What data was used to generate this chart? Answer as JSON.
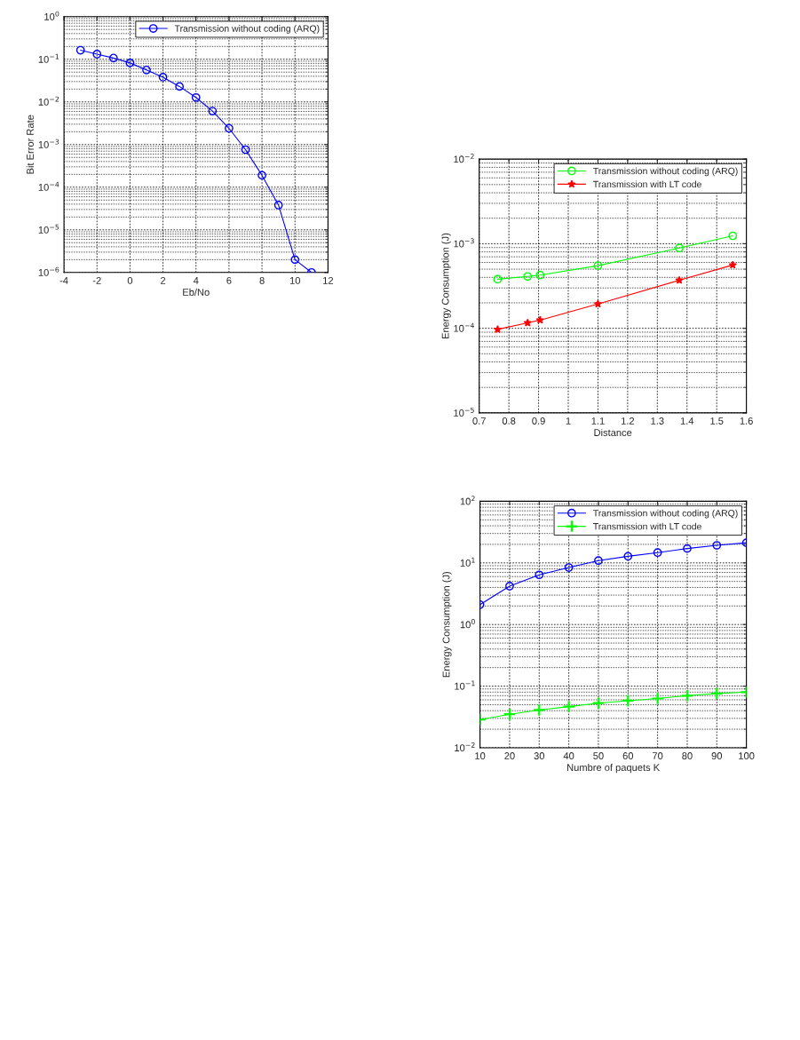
{
  "chart_data": [
    {
      "type": "line",
      "xlabel": "Eb/No",
      "ylabel": "Bit Error Rate",
      "log": "y",
      "grid": true,
      "legend": "top right",
      "marker": "circle",
      "xlim": [
        -4,
        12
      ],
      "xticks": [
        -4,
        -2,
        0,
        2,
        4,
        6,
        8,
        10,
        12
      ],
      "ylim": [
        1e-06,
        1
      ],
      "yticks": [
        {
          "value": 1e-06,
          "label": "10$^{−6}$"
        },
        {
          "value": 1e-05,
          "label": "10$^{−5}$"
        },
        {
          "value": 0.0001,
          "label": "10$^{−4}$"
        },
        {
          "value": 0.001,
          "label": "10$^{−3}$"
        },
        {
          "value": 0.01,
          "label": "10$^{−2}$"
        },
        {
          "value": 0.1,
          "label": "10$^{−1}$"
        },
        {
          "value": 1,
          "label": "10$^{0}$"
        }
      ],
      "x": [
        -3,
        -2,
        -1,
        0,
        1,
        2,
        3,
        4,
        5,
        6,
        7,
        8,
        9,
        10,
        11
      ],
      "series": [
        {
          "name": "Transmission without coding (ARQ)",
          "color": "#0000ff",
          "values": [
            0.163,
            0.132,
            0.107,
            0.082,
            0.056,
            0.038,
            0.023,
            0.0127,
            0.0061,
            0.0024,
            0.00076,
            0.00019,
            3.8e-05,
            2e-06,
            1e-06
          ]
        }
      ]
    },
    {
      "type": "line",
      "xlabel": "Distance",
      "ylabel": "Energy Consumption (J)",
      "log": "y",
      "grid": true,
      "legend": "top right",
      "xlim": [
        0.7,
        1.6
      ],
      "xticks": [
        0.7,
        0.8,
        0.9,
        1,
        1.1,
        1.2,
        1.3,
        1.4,
        1.5,
        1.6
      ],
      "ylim": [
        1e-05,
        0.01
      ],
      "yticks": [
        {
          "value": 1e-05,
          "label": "10$^{−5}$"
        },
        {
          "value": 0.0001,
          "label": "10$^{−4}$"
        },
        {
          "value": 0.001,
          "label": "10$^{−3}$"
        },
        {
          "value": 0.01,
          "label": "10$^{−2}$"
        }
      ],
      "x": [
        0.762,
        0.863,
        0.905,
        1.1,
        1.374,
        1.554
      ],
      "series": [
        {
          "name": "Transmission without coding (ARQ)",
          "color": "#00ff00",
          "marker": "circle",
          "values": [
            0.00038,
            0.00041,
            0.000426,
            0.00055,
            0.00089,
            0.00124
          ]
        },
        {
          "name": "Transmission with LT code",
          "color": "#ff0000",
          "marker": "star",
          "values": [
            9.7e-05,
            0.000116,
            0.000125,
            0.000194,
            0.00037,
            0.00056
          ]
        }
      ]
    },
    {
      "type": "line",
      "xlabel": "Numbre of paquets K",
      "ylabel": "Energy Consumption (J)",
      "log": "y",
      "grid": true,
      "legend": "top right",
      "xlim": [
        10,
        100
      ],
      "xticks": [
        10,
        20,
        30,
        40,
        50,
        60,
        70,
        80,
        90,
        100
      ],
      "ylim": [
        0.01,
        100
      ],
      "yticks": [
        {
          "value": 0.01,
          "label": "10$^{−2}$"
        },
        {
          "value": 0.1,
          "label": "10$^{−1}$"
        },
        {
          "value": 1,
          "label": "10$^{0}$"
        },
        {
          "value": 10,
          "label": "10$^{1}$"
        },
        {
          "value": 100,
          "label": "10$^{2}$"
        }
      ],
      "x": [
        10,
        20,
        30,
        40,
        50,
        60,
        70,
        80,
        90,
        100
      ],
      "series": [
        {
          "name": "Transmission without coding (ARQ)",
          "color": "#0000ff",
          "marker": "circle",
          "values": [
            2.1,
            4.2,
            6.4,
            8.4,
            10.9,
            12.8,
            14.7,
            17.1,
            19.3,
            21.2
          ]
        },
        {
          "name": "Transmission with LT code",
          "color": "#00ff00",
          "marker": "cross",
          "values": [
            0.0287,
            0.035,
            0.041,
            0.0466,
            0.053,
            0.058,
            0.063,
            0.07,
            0.076,
            0.08
          ]
        }
      ]
    }
  ]
}
